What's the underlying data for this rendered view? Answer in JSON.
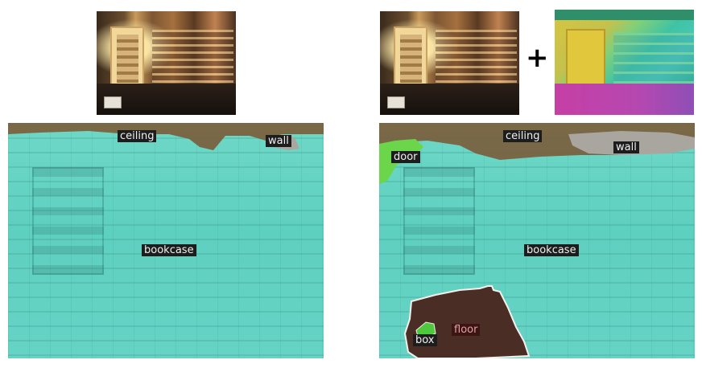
{
  "operator_symbol": "+",
  "colors": {
    "bookcase": "#63d2c3",
    "ceiling": "#7b5e3c",
    "wall": "#a9a6a0",
    "door": "#6bd64a",
    "floor": "#4a2e26",
    "box": "#4ec83c"
  },
  "left": {
    "labels": {
      "ceiling": "ceiling",
      "wall": "wall",
      "bookcase": "bookcase"
    }
  },
  "right": {
    "labels": {
      "ceiling": "ceiling",
      "wall": "wall",
      "door": "door",
      "bookcase": "bookcase",
      "floor": "floor",
      "box": "box"
    }
  }
}
